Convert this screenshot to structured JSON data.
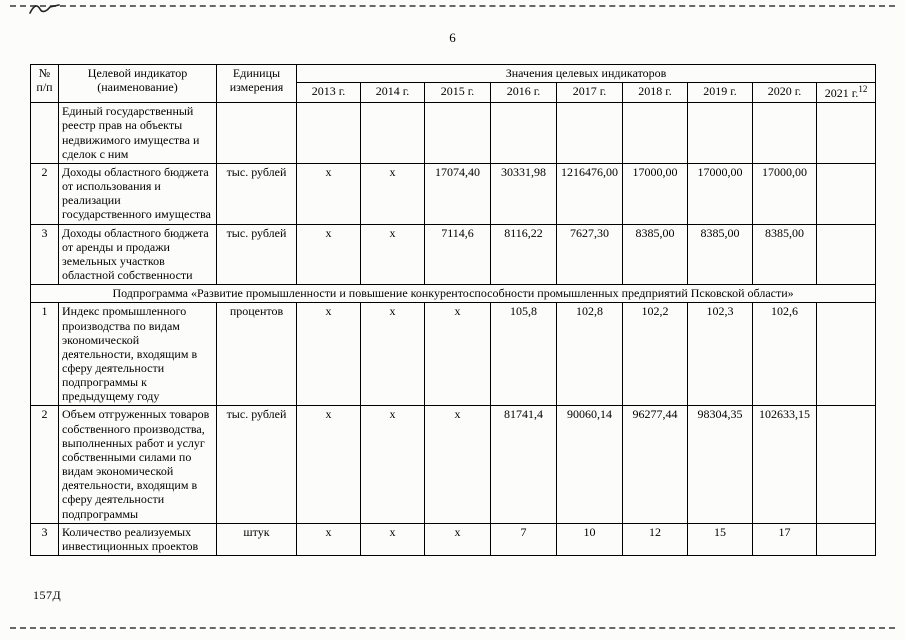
{
  "page": {
    "number": "6",
    "footer_code": "157Д"
  },
  "table": {
    "headers": {
      "num": "№ п/п",
      "indicator": "Целевой индикатор (наименование)",
      "units": "Единицы измерения",
      "values_group": "Значения целевых индикаторов",
      "years": [
        "2013 г.",
        "2014 г.",
        "2015 г.",
        "2016 г.",
        "2017 г.",
        "2018 г.",
        "2019 г.",
        "2020 г.",
        "2021 г."
      ],
      "year_superscript": "12"
    },
    "rows": [
      {
        "type": "data",
        "num": "",
        "indicator": "Единый государственный реестр прав на объекты недвижимого имущества и сделок с ним",
        "units": "",
        "values": [
          "",
          "",
          "",
          "",
          "",
          "",
          "",
          "",
          ""
        ]
      },
      {
        "type": "data",
        "num": "2",
        "indicator": "Доходы областного бюджета от использования и реализации государственного имущества",
        "units": "тыс. рублей",
        "values": [
          "х",
          "х",
          "17074,40",
          "30331,98",
          "1216476,00",
          "17000,00",
          "17000,00",
          "17000,00",
          ""
        ]
      },
      {
        "type": "data",
        "num": "3",
        "indicator": "Доходы областного бюджета от аренды и продажи земельных участков областной собственности",
        "units": "тыс. рублей",
        "values": [
          "х",
          "х",
          "7114,6",
          "8116,22",
          "7627,30",
          "8385,00",
          "8385,00",
          "8385,00",
          ""
        ]
      },
      {
        "type": "section",
        "text": "Подпрограмма «Развитие промышленности и повышение конкурентоспособности промышленных предприятий Псковской области»"
      },
      {
        "type": "data",
        "num": "1",
        "indicator": "Индекс промышленного производства по видам экономической деятельности, входящим в сферу деятельности подпрограммы к предыдущему году",
        "units": "процентов",
        "values": [
          "х",
          "х",
          "х",
          "105,8",
          "102,8",
          "102,2",
          "102,3",
          "102,6",
          ""
        ]
      },
      {
        "type": "data",
        "num": "2",
        "indicator": "Объем отгруженных товаров собственного производства, выполненных работ и услуг собственными силами по видам экономической деятельности, входящим в сферу деятельности подпрограммы",
        "units": "тыс. рублей",
        "values": [
          "х",
          "х",
          "х",
          "81741,4",
          "90060,14",
          "96277,44",
          "98304,35",
          "102633,15",
          ""
        ]
      },
      {
        "type": "data",
        "num": "3",
        "indicator": "Количество реализуемых инвестиционных проектов",
        "units": "штук",
        "values": [
          "х",
          "х",
          "х",
          "7",
          "10",
          "12",
          "15",
          "17",
          ""
        ]
      }
    ]
  }
}
